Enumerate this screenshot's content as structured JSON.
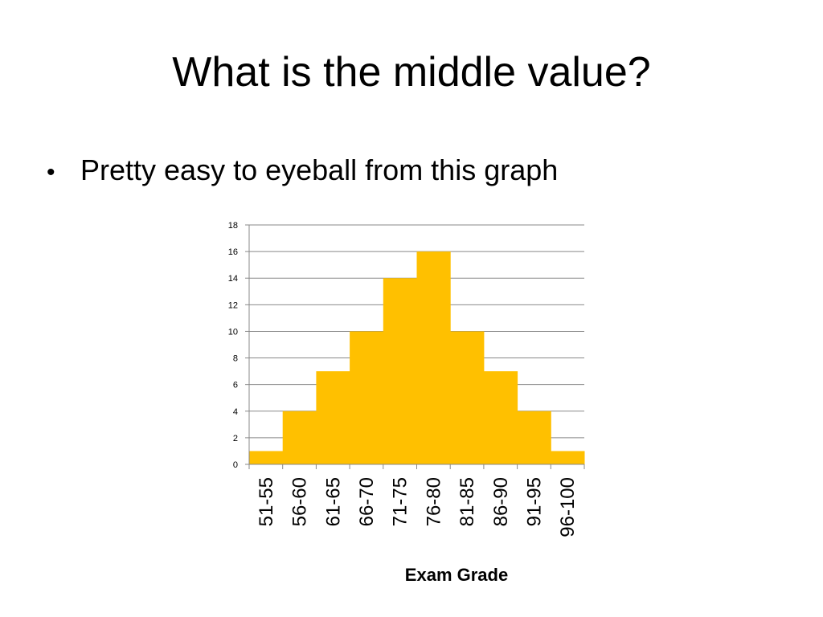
{
  "slide": {
    "title": "What is the middle value?",
    "bullet": "Pretty easy to eyeball from this graph"
  },
  "chart_data": {
    "type": "bar",
    "categories": [
      "51-55",
      "56-60",
      "61-65",
      "66-70",
      "71-75",
      "76-80",
      "81-85",
      "86-90",
      "91-95",
      "96-100"
    ],
    "values": [
      1,
      4,
      7,
      10,
      14,
      16,
      10,
      7,
      4,
      1
    ],
    "title": "",
    "xlabel": "Exam Grade",
    "ylabel": "",
    "ylim": [
      0,
      18
    ],
    "yticks": [
      0,
      2,
      4,
      6,
      8,
      10,
      12,
      14,
      16,
      18
    ],
    "grid": true,
    "legend": "none",
    "bar_color": "#FFC000",
    "grid_color": "#888888"
  }
}
